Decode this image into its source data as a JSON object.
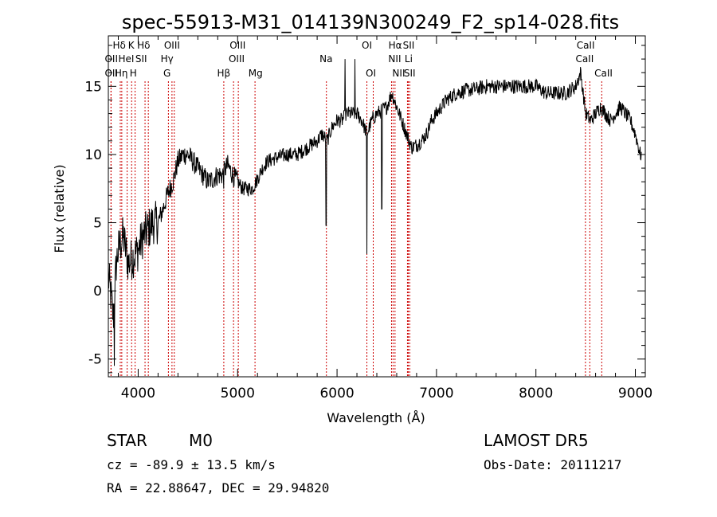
{
  "chart_data": {
    "type": "line",
    "title": "spec-55913-M31_014139N300249_F2_sp14-028.fits",
    "xlabel": "Wavelength (Å)",
    "ylabel": "Flux (relative)",
    "xlim": [
      3700,
      9100
    ],
    "ylim": [
      -6.3,
      18.7
    ],
    "xticks": [
      4000,
      5000,
      6000,
      7000,
      8000,
      9000
    ],
    "yticks": [
      -5,
      0,
      5,
      10,
      15
    ],
    "grid": false,
    "line_color": "#000000",
    "marker_color": "#cc0000",
    "spectrum_anchors": [
      [
        3700,
        1
      ],
      [
        3720,
        0
      ],
      [
        3750,
        -2
      ],
      [
        3780,
        2
      ],
      [
        3800,
        3
      ],
      [
        3850,
        4
      ],
      [
        3900,
        2
      ],
      [
        3950,
        2.5
      ],
      [
        4000,
        3
      ],
      [
        4050,
        4
      ],
      [
        4100,
        4.5
      ],
      [
        4150,
        5
      ],
      [
        4200,
        5
      ],
      [
        4250,
        6
      ],
      [
        4300,
        7.2
      ],
      [
        4350,
        8
      ],
      [
        4400,
        9.5
      ],
      [
        4450,
        10
      ],
      [
        4500,
        10
      ],
      [
        4550,
        9.5
      ],
      [
        4600,
        9
      ],
      [
        4650,
        8.5
      ],
      [
        4700,
        8
      ],
      [
        4750,
        8.2
      ],
      [
        4800,
        8.5
      ],
      [
        4850,
        8.5
      ],
      [
        4880,
        9
      ],
      [
        4900,
        9.2
      ],
      [
        4950,
        8.5
      ],
      [
        5000,
        8
      ],
      [
        5050,
        7.5
      ],
      [
        5100,
        7.5
      ],
      [
        5150,
        7.5
      ],
      [
        5200,
        8.2
      ],
      [
        5250,
        9
      ],
      [
        5300,
        9.5
      ],
      [
        5400,
        9.8
      ],
      [
        5500,
        10
      ],
      [
        5600,
        10
      ],
      [
        5700,
        10.5
      ],
      [
        5800,
        11
      ],
      [
        5850,
        11.5
      ],
      [
        5900,
        11
      ],
      [
        5950,
        12
      ],
      [
        6000,
        12.5
      ],
      [
        6050,
        12.5
      ],
      [
        6100,
        13
      ],
      [
        6150,
        13
      ],
      [
        6200,
        13
      ],
      [
        6250,
        12.5
      ],
      [
        6300,
        11.5
      ],
      [
        6350,
        12.5
      ],
      [
        6400,
        13
      ],
      [
        6450,
        13.2
      ],
      [
        6500,
        13.5
      ],
      [
        6550,
        14.5
      ],
      [
        6600,
        13.5
      ],
      [
        6650,
        12.5
      ],
      [
        6700,
        11.5
      ],
      [
        6750,
        10.5
      ],
      [
        6800,
        10.7
      ],
      [
        6850,
        11
      ],
      [
        6900,
        11.5
      ],
      [
        6950,
        12.5
      ],
      [
        7000,
        13
      ],
      [
        7100,
        14
      ],
      [
        7200,
        14.5
      ],
      [
        7300,
        14.7
      ],
      [
        7400,
        14.8
      ],
      [
        7500,
        15
      ],
      [
        7600,
        15
      ],
      [
        7700,
        15
      ],
      [
        7800,
        15
      ],
      [
        7900,
        15
      ],
      [
        8000,
        15
      ],
      [
        8100,
        14.5
      ],
      [
        8200,
        14.5
      ],
      [
        8300,
        14.5
      ],
      [
        8400,
        15
      ],
      [
        8450,
        16
      ],
      [
        8500,
        13
      ],
      [
        8550,
        12.5
      ],
      [
        8600,
        13
      ],
      [
        8650,
        13.5
      ],
      [
        8700,
        13
      ],
      [
        8750,
        12.5
      ],
      [
        8800,
        13
      ],
      [
        8850,
        13.5
      ],
      [
        8900,
        13
      ],
      [
        8950,
        12.5
      ],
      [
        9000,
        11.5
      ],
      [
        9050,
        10
      ]
    ],
    "spikes": [
      [
        4860,
        7.5
      ],
      [
        5890,
        4.8
      ],
      [
        6180,
        17
      ],
      [
        6300,
        2.7
      ],
      [
        6080,
        17
      ],
      [
        6450,
        6
      ],
      [
        3760,
        -5.5
      ]
    ],
    "line_markers": [
      {
        "label": "Hδ",
        "wave": 3820,
        "row": 0,
        "label_x": 3810
      },
      {
        "label": "K",
        "wave": 3934,
        "row": 0,
        "label_x": 3930
      },
      {
        "label": "Hδ",
        "wave": 4102,
        "row": 0,
        "label_x": 4055
      },
      {
        "label": "OIII",
        "wave": 4363,
        "row": 0,
        "label_x": 4340
      },
      {
        "label": "OIII",
        "wave": 4959,
        "row": 0,
        "label_x": 5000
      },
      {
        "label": "OI",
        "wave": 6300,
        "row": 0,
        "label_x": 6300
      },
      {
        "label": "Hα",
        "wave": 6563,
        "row": 0,
        "label_x": 6585
      },
      {
        "label": "SII",
        "wave": 6716,
        "row": 0,
        "label_x": 6720
      },
      {
        "label": "CaII",
        "wave": 8498,
        "row": 0,
        "label_x": 8500
      },
      {
        "label": "OII",
        "wave": 3727,
        "row": 1,
        "label_x": 3730
      },
      {
        "label": "HeI",
        "wave": 3889,
        "row": 1,
        "label_x": 3880
      },
      {
        "label": "SII",
        "wave": 4069,
        "row": 1,
        "label_x": 4030
      },
      {
        "label": "Hγ",
        "wave": 4340,
        "row": 1,
        "label_x": 4290
      },
      {
        "label": "OIII",
        "wave": 5007,
        "row": 1,
        "label_x": 4990
      },
      {
        "label": "Na",
        "wave": 5893,
        "row": 1,
        "label_x": 5890
      },
      {
        "label": "NII",
        "wave": 6548,
        "row": 1,
        "label_x": 6580
      },
      {
        "label": "Li",
        "wave": 6708,
        "row": 1,
        "label_x": 6720
      },
      {
        "label": "CaII",
        "wave": 8542,
        "row": 1,
        "label_x": 8490
      },
      {
        "label": "OII",
        "wave": 3727,
        "row": 2,
        "label_x": 3730
      },
      {
        "label": "Hη",
        "wave": 3835,
        "row": 2,
        "label_x": 3830
      },
      {
        "label": "H",
        "wave": 3969,
        "row": 2,
        "label_x": 3950
      },
      {
        "label": "G",
        "wave": 4304,
        "row": 2,
        "label_x": 4290
      },
      {
        "label": "Hβ",
        "wave": 4861,
        "row": 2,
        "label_x": 4860
      },
      {
        "label": "Mg",
        "wave": 5175,
        "row": 2,
        "label_x": 5180
      },
      {
        "label": "OI",
        "wave": 6364,
        "row": 2,
        "label_x": 6340
      },
      {
        "label": "NII",
        "wave": 6583,
        "row": 2,
        "label_x": 6620
      },
      {
        "label": "SII",
        "wave": 6731,
        "row": 2,
        "label_x": 6730
      },
      {
        "label": "CaII",
        "wave": 8662,
        "row": 2,
        "label_x": 8680
      }
    ]
  },
  "info": {
    "class_label": "STAR",
    "subclass_label": "M0",
    "survey": "LAMOST DR5",
    "cz_text": "cz = -89.9 ± 13.5 km/s",
    "obs_date": "Obs-Date: 20111217",
    "coords": "RA =  22.88647, DEC =  29.94820"
  }
}
